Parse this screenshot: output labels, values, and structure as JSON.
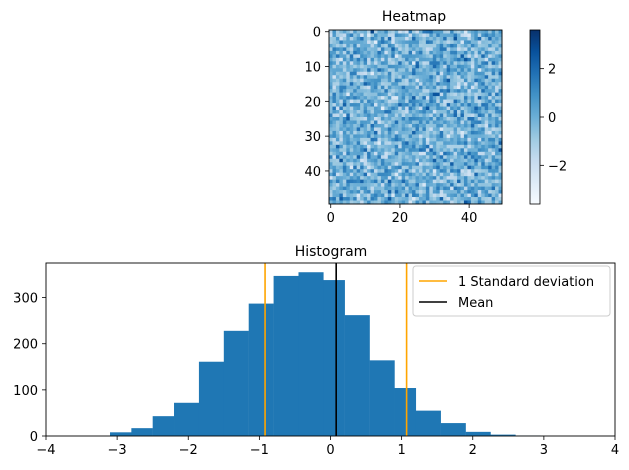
{
  "chart_data": [
    {
      "type": "heatmap",
      "title": "Heatmap",
      "rows": 50,
      "cols": 50,
      "colormap": "Blues",
      "value_range": [
        -3.6,
        3.6
      ],
      "xlim": [
        -0.5,
        49.5
      ],
      "ylim": [
        49.5,
        -0.5
      ],
      "xticks": [
        0,
        20,
        40
      ],
      "yticks": [
        0,
        10,
        20,
        30,
        40
      ],
      "colorbar_ticks": [
        2,
        0,
        -2
      ],
      "colorbar_tick_labels": [
        "2",
        "0",
        "−2"
      ],
      "values_note_seed": 7
    },
    {
      "type": "bar",
      "title": "Histogram",
      "bin_edges": [
        -3.1,
        -2.8,
        -2.5,
        -2.2,
        -1.85,
        -1.5,
        -1.15,
        -0.8,
        -0.45,
        -0.1,
        0.2,
        0.55,
        0.9,
        1.2,
        1.55,
        1.9,
        2.25,
        2.6,
        2.95,
        3.25
      ],
      "counts": [
        8,
        17,
        43,
        72,
        161,
        228,
        287,
        347,
        355,
        338,
        262,
        164,
        104,
        55,
        28,
        9,
        3,
        1,
        0
      ],
      "xlim": [
        -4,
        4
      ],
      "ylim": [
        0,
        375
      ],
      "xticks": [
        -4,
        -3,
        -2,
        -1,
        0,
        1,
        2,
        3,
        4
      ],
      "xtick_labels": [
        "−4",
        "−3",
        "−2",
        "−1",
        "0",
        "1",
        "2",
        "3",
        "4"
      ],
      "yticks": [
        0,
        100,
        200,
        300
      ],
      "bar_color": "#1f77b4",
      "mean": 0.08,
      "std_lines": [
        -0.92,
        1.07
      ],
      "std_color": "#ffa500",
      "mean_color": "#000000",
      "legend": {
        "placement": "upper right",
        "entries": [
          {
            "label": "1 Standard deviation",
            "color": "#ffa500"
          },
          {
            "label": "Mean",
            "color": "#000000"
          }
        ]
      }
    }
  ]
}
